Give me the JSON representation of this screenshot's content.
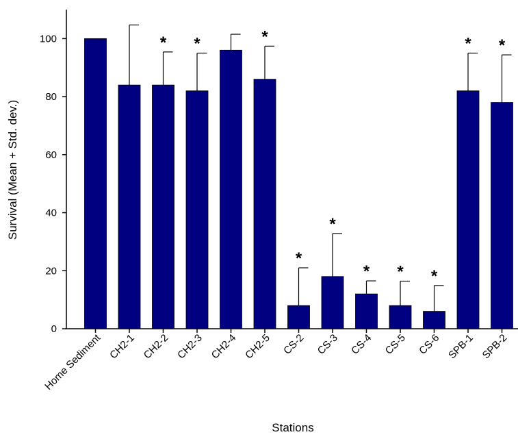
{
  "chart_data": {
    "type": "bar",
    "xlabel": "Stations",
    "ylabel": "Survival (Mean + Std. dev.)",
    "ylim": [
      0,
      110
    ],
    "yticks": [
      0,
      20,
      40,
      60,
      80,
      100
    ],
    "categories": [
      "Home Sediment",
      "CH2-1",
      "CH2-2",
      "CH2-3",
      "CH2-4",
      "CH2-5",
      "CS-2",
      "CS-3",
      "CS-4",
      "CS-5",
      "CS-6",
      "SPB-1",
      "SPB-2"
    ],
    "values": [
      100,
      84,
      84,
      82,
      96,
      86,
      8,
      18,
      12,
      8,
      6,
      82,
      78
    ],
    "std_dev": [
      0,
      20.7,
      11.4,
      13.0,
      5.5,
      11.4,
      13.0,
      14.8,
      4.5,
      8.4,
      8.9,
      13.0,
      16.4
    ],
    "significance_marker": "*",
    "significant": [
      false,
      false,
      true,
      true,
      false,
      true,
      true,
      true,
      true,
      true,
      true,
      true,
      true
    ],
    "bar_color": "#000080"
  }
}
